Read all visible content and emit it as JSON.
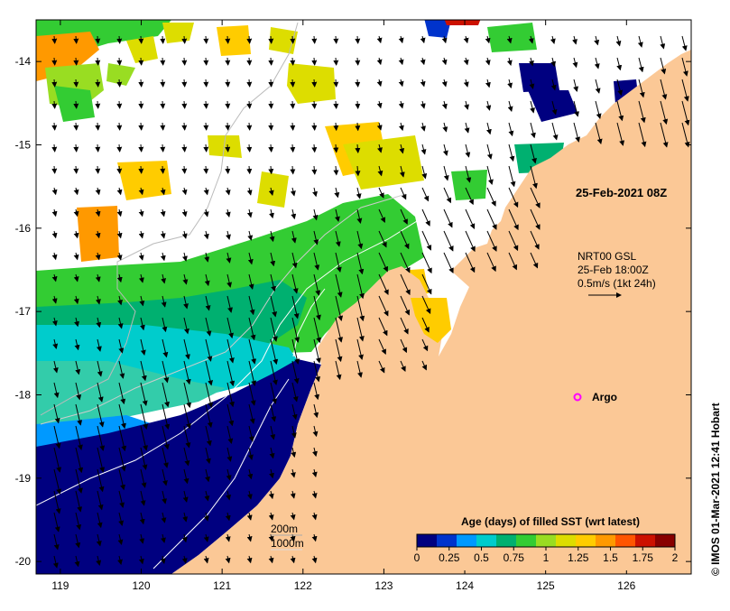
{
  "map": {
    "date_label": "25-Feb-2021 08Z",
    "current_legend": {
      "line1": "NRT00 GSL",
      "line2": "25-Feb 18:00Z",
      "line3": "0.5m/s (1kt 24h)"
    },
    "argo_label": "Argo",
    "credit": "© IMOS 01-Mar-2021 12:41 Hobart",
    "bathymetry_labels": [
      "200m",
      "1000m"
    ],
    "x_ticks": [
      "119",
      "120",
      "121",
      "122",
      "123",
      "124",
      "125",
      "126"
    ],
    "y_ticks": [
      "-14",
      "-15",
      "-16",
      "-17",
      "-18",
      "-19",
      "-20"
    ],
    "lon_range": [
      118.7,
      126.8
    ],
    "lat_range": [
      -20.15,
      -13.5
    ]
  },
  "colorbar": {
    "title": "Age (days) of filled SST (wrt latest)",
    "tick_labels": [
      "0",
      "0.25",
      "0.5",
      "0.75",
      "1",
      "1.25",
      "1.5",
      "1.75",
      "2"
    ],
    "colors": [
      "#000080",
      "#0033cc",
      "#0099ff",
      "#00cccc",
      "#00b070",
      "#33cc33",
      "#99dd22",
      "#dddd00",
      "#ffcc00",
      "#ff9900",
      "#ff5500",
      "#cc1100",
      "#880000"
    ]
  },
  "colors": {
    "land": "#fbc896",
    "no_data": "#ffffff",
    "argo_marker": "#ff00ff"
  }
}
